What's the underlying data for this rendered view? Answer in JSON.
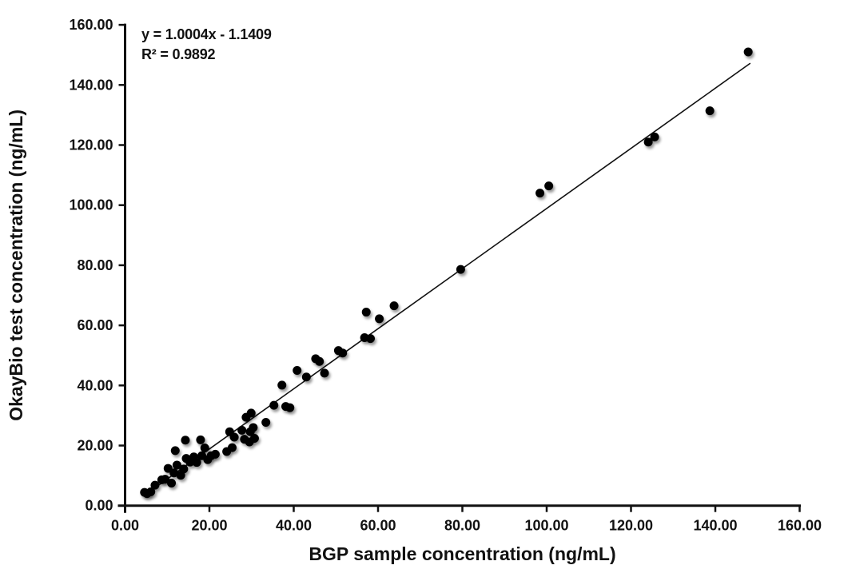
{
  "chart_data": {
    "type": "scatter",
    "title": "",
    "xlabel": "BGP sample concentration (ng/mL)",
    "ylabel": "OkayBio test concentration (ng/mL)",
    "xlim": [
      0,
      160
    ],
    "ylim": [
      0,
      160
    ],
    "xticks": [
      0,
      20,
      40,
      60,
      80,
      100,
      120,
      140,
      160
    ],
    "yticks": [
      0,
      20,
      40,
      60,
      80,
      100,
      120,
      140,
      160
    ],
    "xtick_labels": [
      "0.00",
      "20.00",
      "40.00",
      "60.00",
      "80.00",
      "100.00",
      "120.00",
      "140.00",
      "160.00"
    ],
    "ytick_labels": [
      "0.00",
      "20.00",
      "40.00",
      "60.00",
      "80.00",
      "100.00",
      "120.00",
      "140.00",
      "160.00"
    ],
    "grid": false,
    "legend": "none",
    "axis_color": "#111111",
    "marker": {
      "shape": "circle",
      "color": "#000000",
      "radius": 5.5
    },
    "trendline": {
      "slope": 1.0004,
      "intercept": -1.1409,
      "x_start": 4.5,
      "x_end": 148.3,
      "color": "#111111",
      "equation": "y = 1.0004x - 1.1409",
      "r_squared": "R² = 0.9892"
    },
    "points": [
      [
        4.6,
        4.4
      ],
      [
        5.2,
        4.0
      ],
      [
        6.1,
        4.6
      ],
      [
        7.1,
        6.8
      ],
      [
        8.7,
        8.6
      ],
      [
        9.5,
        8.8
      ],
      [
        10.2,
        12.4
      ],
      [
        11.0,
        7.5
      ],
      [
        11.6,
        10.9
      ],
      [
        11.9,
        18.3
      ],
      [
        12.3,
        13.5
      ],
      [
        13.2,
        10.1
      ],
      [
        13.9,
        12.2
      ],
      [
        14.3,
        21.8
      ],
      [
        14.5,
        15.7
      ],
      [
        15.4,
        14.5
      ],
      [
        16.3,
        16.2
      ],
      [
        17.0,
        14.4
      ],
      [
        17.9,
        21.9
      ],
      [
        18.2,
        16.6
      ],
      [
        18.9,
        19.2
      ],
      [
        19.6,
        15.3
      ],
      [
        20.4,
        16.6
      ],
      [
        21.4,
        17.1
      ],
      [
        24.1,
        18.0
      ],
      [
        24.8,
        24.6
      ],
      [
        25.4,
        19.3
      ],
      [
        25.9,
        22.8
      ],
      [
        27.7,
        25.1
      ],
      [
        28.3,
        22.1
      ],
      [
        28.7,
        29.4
      ],
      [
        29.5,
        21.2
      ],
      [
        29.7,
        24.6
      ],
      [
        29.9,
        30.8
      ],
      [
        30.4,
        26.0
      ],
      [
        30.7,
        22.4
      ],
      [
        33.4,
        27.7
      ],
      [
        35.3,
        33.4
      ],
      [
        37.2,
        40.1
      ],
      [
        38.1,
        33.0
      ],
      [
        39.1,
        32.6
      ],
      [
        40.8,
        45.0
      ],
      [
        43.0,
        42.8
      ],
      [
        45.2,
        48.9
      ],
      [
        46.1,
        48.0
      ],
      [
        47.3,
        44.1
      ],
      [
        50.6,
        51.6
      ],
      [
        51.6,
        50.8
      ],
      [
        56.8,
        55.9
      ],
      [
        58.2,
        55.6
      ],
      [
        57.2,
        64.4
      ],
      [
        60.3,
        62.2
      ],
      [
        63.8,
        66.5
      ],
      [
        79.6,
        78.6
      ],
      [
        98.4,
        104.0
      ],
      [
        100.5,
        106.4
      ],
      [
        124.1,
        121.0
      ],
      [
        125.6,
        122.7
      ],
      [
        138.7,
        131.4
      ],
      [
        147.8,
        151.0
      ]
    ]
  }
}
